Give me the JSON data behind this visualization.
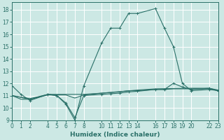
{
  "xlabel": "Humidex (Indice chaleur)",
  "bg_color": "#cce8e4",
  "grid_color": "#ffffff",
  "line_color": "#2a7068",
  "xlim": [
    0,
    23
  ],
  "ylim": [
    9,
    18.6
  ],
  "yticks": [
    9,
    10,
    11,
    12,
    13,
    14,
    15,
    16,
    17,
    18
  ],
  "xtick_positions": [
    0,
    1,
    2,
    4,
    5,
    6,
    7,
    8,
    10,
    11,
    12,
    13,
    14,
    16,
    17,
    18,
    19,
    20,
    22,
    23
  ],
  "xtick_labels": [
    "0",
    "1",
    "2",
    "4",
    "5",
    "6",
    "7",
    "8",
    "10",
    "11",
    "12",
    "13",
    "14",
    "16",
    "17",
    "18",
    "19",
    "20",
    "22",
    "23"
  ],
  "line1_x": [
    0,
    1,
    2,
    4,
    5,
    6,
    7,
    8,
    10,
    11,
    12,
    13,
    14,
    16,
    17,
    18,
    19,
    20,
    22,
    23
  ],
  "line1_y": [
    11.8,
    11.1,
    10.6,
    11.1,
    11.0,
    10.3,
    9.0,
    11.8,
    15.3,
    16.5,
    16.5,
    17.7,
    17.7,
    18.1,
    16.5,
    15.0,
    12.0,
    11.4,
    11.5,
    11.4
  ],
  "line2_x": [
    0,
    1,
    2,
    4,
    5,
    6,
    7,
    8,
    10,
    11,
    12,
    13,
    14,
    16,
    17,
    18,
    19,
    20,
    22,
    23
  ],
  "line2_y": [
    11.0,
    10.7,
    10.7,
    11.05,
    11.05,
    11.05,
    10.8,
    11.05,
    11.2,
    11.25,
    11.3,
    11.4,
    11.4,
    11.5,
    11.5,
    11.55,
    11.55,
    11.55,
    11.55,
    11.4
  ],
  "line3_x": [
    0,
    2,
    4,
    5,
    6,
    7,
    8,
    10,
    11,
    12,
    13,
    14,
    16,
    17,
    18,
    19,
    20,
    22,
    23
  ],
  "line3_y": [
    11.0,
    10.7,
    11.1,
    11.0,
    10.4,
    9.2,
    11.0,
    11.1,
    11.15,
    11.2,
    11.3,
    11.35,
    11.5,
    11.5,
    12.0,
    11.7,
    11.5,
    11.6,
    11.4
  ],
  "line4_x": [
    0,
    2,
    4,
    8,
    10,
    14,
    16,
    20,
    22,
    23
  ],
  "line4_y": [
    11.0,
    10.75,
    11.1,
    11.1,
    11.2,
    11.45,
    11.55,
    11.6,
    11.6,
    11.45
  ]
}
